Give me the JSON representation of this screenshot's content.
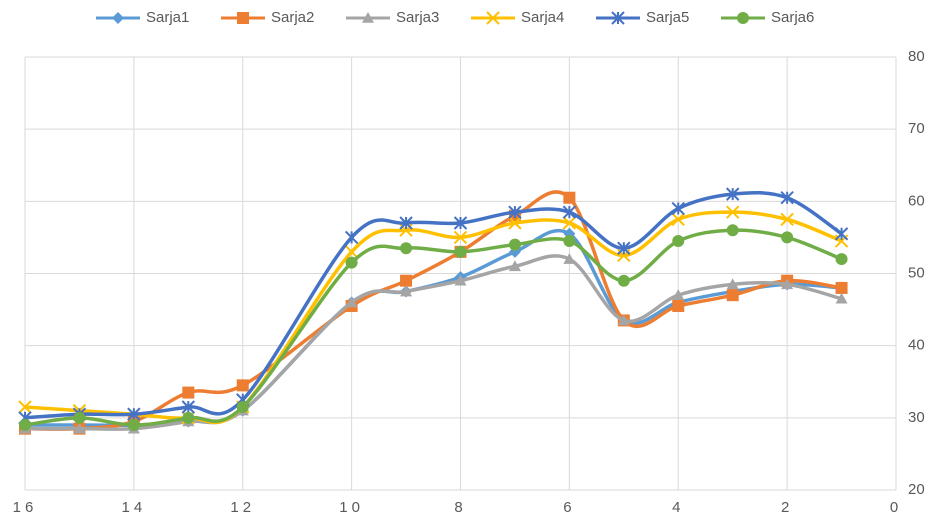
{
  "chart_data": {
    "type": "line",
    "smooth": true,
    "y_axis_side": "right",
    "grid": true,
    "legend": "top",
    "x": [
      16,
      15,
      14,
      13,
      12,
      10,
      9,
      8,
      7,
      6,
      5,
      4,
      3,
      2,
      1
    ],
    "xlim": [
      16,
      0
    ],
    "xticks": [
      16,
      14,
      12,
      10,
      8,
      6,
      4,
      2,
      0
    ],
    "ylim": [
      20,
      80
    ],
    "yticks": [
      20,
      30,
      40,
      50,
      60,
      70,
      80
    ],
    "series": [
      {
        "name": "Sarja1",
        "color": "#5b9bd5",
        "marker": "diamond",
        "values": [
          29,
          29,
          29,
          29.5,
          31,
          46,
          47.5,
          49.5,
          53,
          55.5,
          43.5,
          46,
          47.5,
          48.5,
          48
        ]
      },
      {
        "name": "Sarja2",
        "color": "#ed7d31",
        "marker": "square",
        "values": [
          28.5,
          28.5,
          29.5,
          33.5,
          34.5,
          45.5,
          49,
          53,
          58,
          60.5,
          43.5,
          45.5,
          47,
          49,
          48
        ]
      },
      {
        "name": "Sarja3",
        "color": "#a5a5a5",
        "marker": "triangle",
        "values": [
          28.5,
          28.5,
          28.5,
          29.5,
          31,
          46,
          47.5,
          49,
          51,
          52,
          43.5,
          47,
          48.5,
          48.5,
          46.5
        ]
      },
      {
        "name": "Sarja4",
        "color": "#ffc000",
        "marker": "x",
        "values": [
          31.5,
          31,
          30.5,
          30,
          31.5,
          53,
          56,
          55,
          57,
          57,
          52.5,
          57.5,
          58.5,
          57.5,
          54.5
        ]
      },
      {
        "name": "Sarja5",
        "color": "#4472c4",
        "marker": "star",
        "values": [
          30,
          30.5,
          30.5,
          31.5,
          32.5,
          55,
          57,
          57,
          58.5,
          58.5,
          53.5,
          59,
          61,
          60.5,
          55.5
        ]
      },
      {
        "name": "Sarja6",
        "color": "#70ad47",
        "marker": "circle",
        "values": [
          29,
          30,
          29,
          30,
          31.5,
          51.5,
          53.5,
          53,
          54,
          54.5,
          49,
          54.5,
          56,
          55,
          52
        ]
      }
    ]
  }
}
